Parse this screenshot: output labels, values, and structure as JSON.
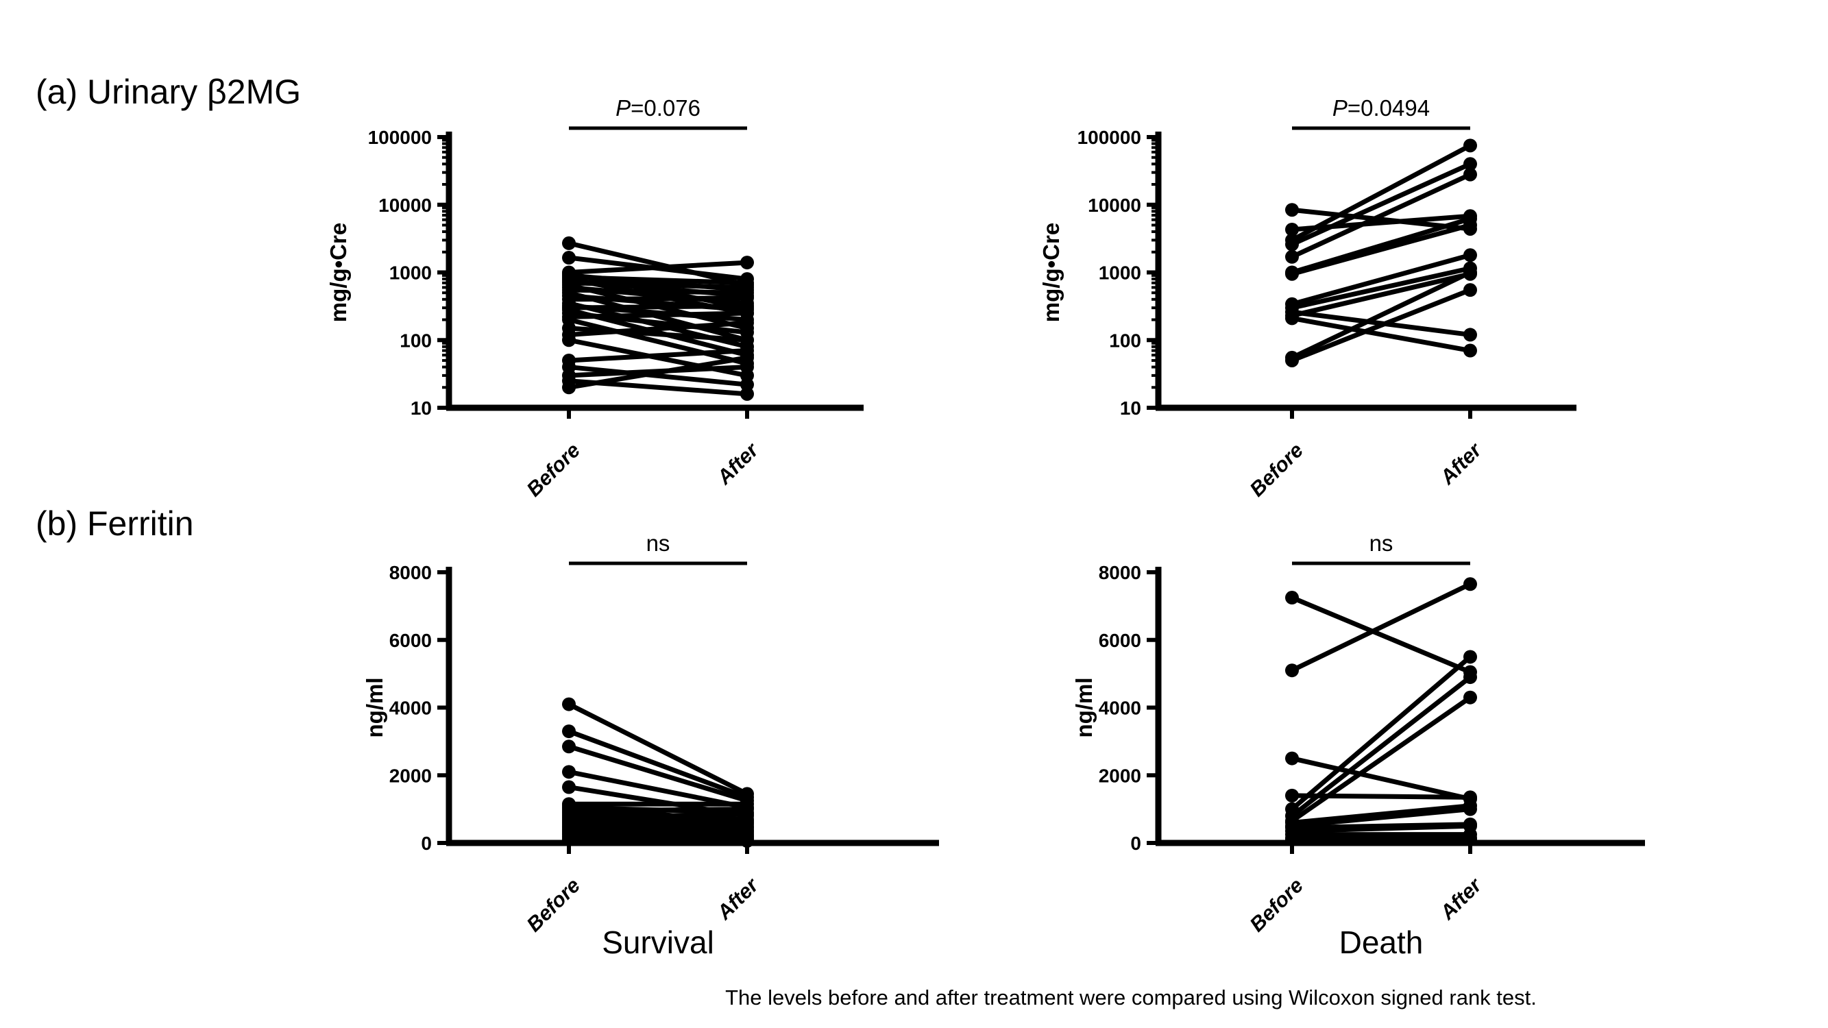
{
  "figure": {
    "section_a_label": "(a) Urinary β2MG",
    "section_b_label": "(b) Ferritin",
    "group_labels": [
      "Survival",
      "Death"
    ],
    "caption": "The levels before and after treatment were compared using Wilcoxon signed rank test.",
    "ink_color": "#000000",
    "background_color": "#ffffff"
  },
  "chart_data": [
    {
      "id": "urinary_b2mg_survival",
      "type": "line",
      "subtype": "paired-before-after",
      "group": "Survival",
      "significance": "P=0.076",
      "ylabel": "mg/g•Cre",
      "yscale": "log",
      "ylim": [
        10,
        100000
      ],
      "yticks": [
        10,
        100,
        1000,
        10000,
        100000
      ],
      "ytick_labels": [
        "10",
        "100",
        "1000",
        "10000",
        "100000"
      ],
      "categories": [
        "Before",
        "After"
      ],
      "pairs": [
        [
          2700,
          650
        ],
        [
          1650,
          800
        ],
        [
          1000,
          1400
        ],
        [
          950,
          300
        ],
        [
          900,
          550
        ],
        [
          850,
          700
        ],
        [
          800,
          250
        ],
        [
          750,
          450
        ],
        [
          700,
          600
        ],
        [
          650,
          150
        ],
        [
          600,
          350
        ],
        [
          550,
          500
        ],
        [
          500,
          100
        ],
        [
          450,
          280
        ],
        [
          400,
          420
        ],
        [
          350,
          80
        ],
        [
          320,
          200
        ],
        [
          300,
          320
        ],
        [
          280,
          60
        ],
        [
          250,
          130
        ],
        [
          220,
          250
        ],
        [
          200,
          45
        ],
        [
          150,
          100
        ],
        [
          120,
          180
        ],
        [
          100,
          30
        ],
        [
          50,
          70
        ],
        [
          40,
          22
        ],
        [
          30,
          40
        ],
        [
          25,
          16
        ],
        [
          20,
          55
        ]
      ]
    },
    {
      "id": "urinary_b2mg_death",
      "type": "line",
      "subtype": "paired-before-after",
      "group": "Death",
      "significance": "P=0.0494",
      "ylabel": "mg/g•Cre",
      "yscale": "log",
      "ylim": [
        10,
        100000
      ],
      "yticks": [
        10,
        100,
        1000,
        10000,
        100000
      ],
      "ytick_labels": [
        "10",
        "100",
        "1000",
        "10000",
        "100000"
      ],
      "categories": [
        "Before",
        "After"
      ],
      "pairs": [
        [
          8400,
          4400
        ],
        [
          4300,
          6800
        ],
        [
          3000,
          75000
        ],
        [
          2600,
          40000
        ],
        [
          1700,
          28000
        ],
        [
          1000,
          6200
        ],
        [
          950,
          5000
        ],
        [
          340,
          1800
        ],
        [
          300,
          1150
        ],
        [
          260,
          120
        ],
        [
          230,
          950
        ],
        [
          210,
          70
        ],
        [
          55,
          1000
        ],
        [
          50,
          550
        ]
      ]
    },
    {
      "id": "ferritin_survival",
      "type": "line",
      "subtype": "paired-before-after",
      "group": "Survival",
      "significance": "ns",
      "ylabel": "ng/ml",
      "yscale": "linear",
      "ylim": [
        0,
        8000
      ],
      "yticks": [
        0,
        2000,
        4000,
        6000,
        8000
      ],
      "ytick_labels": [
        "0",
        "2000",
        "4000",
        "6000",
        "8000"
      ],
      "categories": [
        "Before",
        "After"
      ],
      "pairs": [
        [
          4100,
          1450
        ],
        [
          3300,
          1350
        ],
        [
          2850,
          1250
        ],
        [
          2100,
          1050
        ],
        [
          1650,
          800
        ],
        [
          1150,
          1150
        ],
        [
          1100,
          600
        ],
        [
          1050,
          900
        ],
        [
          1000,
          450
        ],
        [
          950,
          1000
        ],
        [
          900,
          350
        ],
        [
          850,
          700
        ],
        [
          800,
          250
        ],
        [
          750,
          850
        ],
        [
          700,
          200
        ],
        [
          650,
          550
        ],
        [
          600,
          150
        ],
        [
          550,
          650
        ],
        [
          500,
          120
        ],
        [
          450,
          480
        ],
        [
          400,
          100
        ],
        [
          350,
          380
        ],
        [
          300,
          90
        ],
        [
          250,
          300
        ],
        [
          200,
          80
        ],
        [
          150,
          200
        ],
        [
          100,
          60
        ]
      ]
    },
    {
      "id": "ferritin_death",
      "type": "line",
      "subtype": "paired-before-after",
      "group": "Death",
      "significance": "ns",
      "ylabel": "ng/ml",
      "yscale": "linear",
      "ylim": [
        0,
        8000
      ],
      "yticks": [
        0,
        2000,
        4000,
        6000,
        8000
      ],
      "ytick_labels": [
        "0",
        "2000",
        "4000",
        "6000",
        "8000"
      ],
      "categories": [
        "Before",
        "After"
      ],
      "pairs": [
        [
          7250,
          5050
        ],
        [
          5100,
          7650
        ],
        [
          2500,
          1300
        ],
        [
          1400,
          1350
        ],
        [
          1000,
          5500
        ],
        [
          800,
          4900
        ],
        [
          650,
          4300
        ],
        [
          600,
          1100
        ],
        [
          500,
          1000
        ],
        [
          450,
          550
        ],
        [
          350,
          500
        ],
        [
          250,
          250
        ],
        [
          150,
          150
        ],
        [
          100,
          100
        ]
      ]
    }
  ]
}
